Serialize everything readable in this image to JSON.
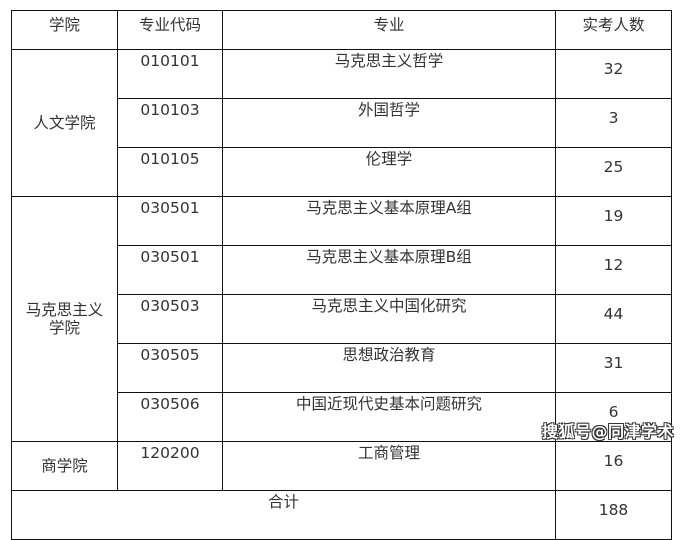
{
  "headers": [
    "学院",
    "专业代码",
    "专业",
    "实考人数"
  ],
  "groups": [
    {
      "college": "人文学院",
      "rows": [
        {
          "code": "010101",
          "major": "马克思主义哲学",
          "count": "32"
        },
        {
          "code": "010103",
          "major": "外国哲学",
          "count": "3"
        },
        {
          "code": "010105",
          "major": "伦理学",
          "count": "25"
        }
      ]
    },
    {
      "college": "马克思主义学院",
      "rows": [
        {
          "code": "030501",
          "major": "马克思主义基本原理A组",
          "count": "19"
        },
        {
          "code": "030501",
          "major": "马克思主义基本原理B组",
          "count": "12"
        },
        {
          "code": "030503",
          "major": "马克思主义中国化研究",
          "count": "44"
        },
        {
          "code": "030505",
          "major": "思想政治教育",
          "count": "31"
        },
        {
          "code": "030506",
          "major": "中国近现代史基本问题研究",
          "count": "6"
        }
      ]
    },
    {
      "college": "商学院",
      "rows": [
        {
          "code": "120200",
          "major": "工商管理",
          "count": "16"
        }
      ]
    }
  ],
  "total": {
    "label": "合计",
    "count": "188"
  },
  "watermark": "搜狐号@同津学术"
}
